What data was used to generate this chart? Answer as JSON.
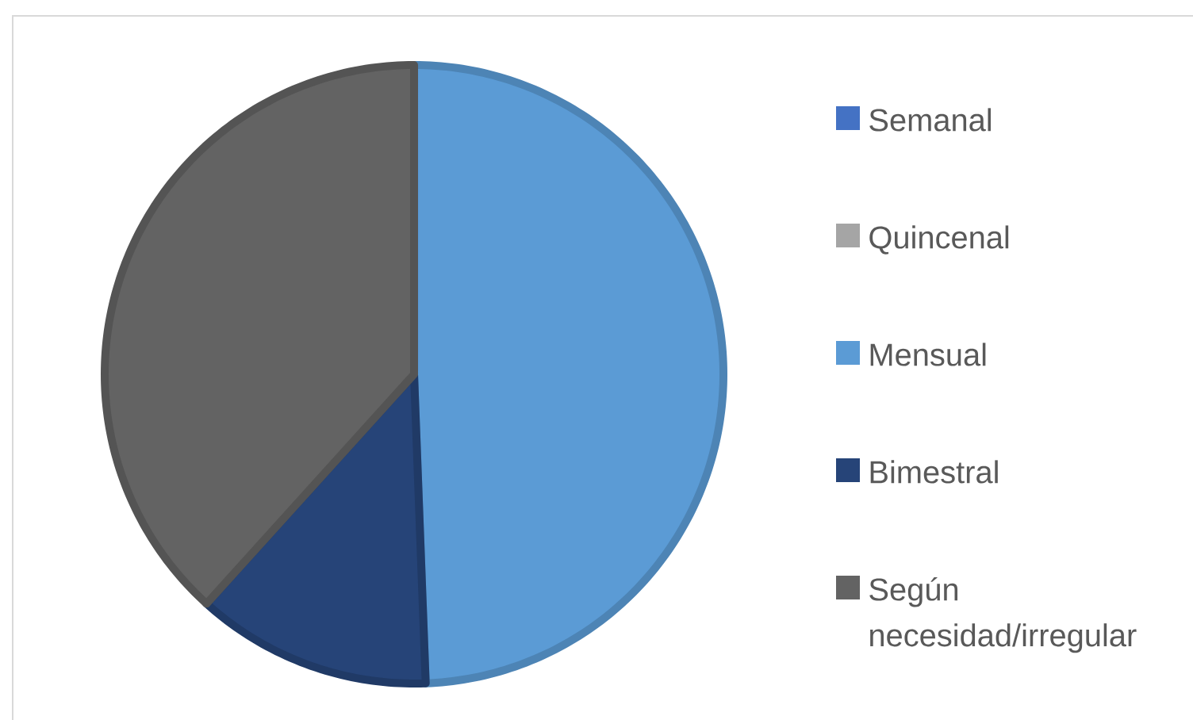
{
  "chart_data": {
    "type": "pie",
    "categories": [
      "Semanal",
      "Quincenal",
      "Mensual",
      "Bimestral",
      "Según necesidad/irregular"
    ],
    "values": [
      0,
      0,
      49.4,
      12.3,
      38.3
    ],
    "colors": [
      "#4472c4",
      "#a5a5a5",
      "#5b9bd5",
      "#264478",
      "#636363"
    ],
    "legend": "right"
  }
}
